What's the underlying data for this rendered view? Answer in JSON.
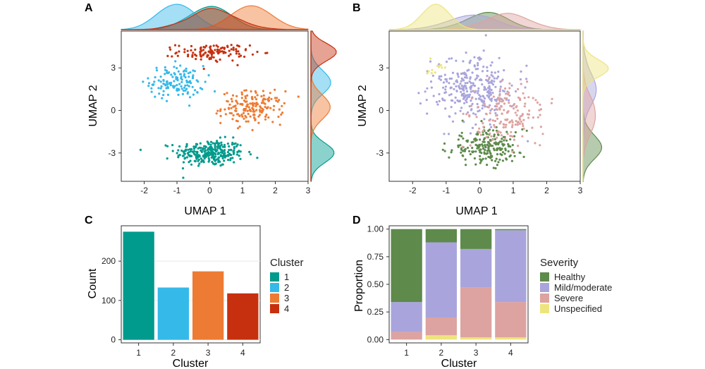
{
  "colors": {
    "cluster1": "#009B8D",
    "cluster2": "#35B9E9",
    "cluster3": "#EE7B33",
    "cluster4": "#C7300E",
    "healthy": "#5E8A4B",
    "mild": "#A9A5DC",
    "severe": "#DDA3A0",
    "unspecified": "#EEE47E"
  },
  "panels": {
    "A": {
      "label": "A"
    },
    "B": {
      "label": "B"
    },
    "C": {
      "label": "C"
    },
    "D": {
      "label": "D"
    }
  },
  "chart_data": [
    {
      "id": "A",
      "type": "scatter",
      "title": "",
      "xlabel": "UMAP 1",
      "ylabel": "UMAP 2",
      "xlim": [
        -2.7,
        3.0
      ],
      "ylim": [
        -5.0,
        5.6
      ],
      "xticks": [
        -2,
        -1,
        0,
        1,
        2,
        3
      ],
      "xtick_labels": [
        "-2",
        "-1",
        "0",
        "1",
        "2",
        "3"
      ],
      "yticks": [
        3,
        0,
        -3
      ],
      "ytick_labels": [
        "3",
        "0",
        "-3"
      ],
      "color_by": "cluster",
      "groups": [
        {
          "name": "1",
          "n": 275,
          "center": [
            0.0,
            -3.0
          ],
          "spread": [
            0.95,
            0.85
          ]
        },
        {
          "name": "2",
          "n": 133,
          "center": [
            -1.0,
            2.0
          ],
          "spread": [
            0.75,
            1.05
          ]
        },
        {
          "name": "3",
          "n": 174,
          "center": [
            1.3,
            0.2
          ],
          "spread": [
            0.85,
            1.05
          ]
        },
        {
          "name": "4",
          "n": 118,
          "center": [
            0.1,
            4.1
          ],
          "spread": [
            1.0,
            0.55
          ]
        }
      ],
      "marginal_densities": true
    },
    {
      "id": "B",
      "type": "scatter",
      "title": "",
      "xlabel": "UMAP 1",
      "ylabel": "UMAP 2",
      "xlim": [
        -2.7,
        3.0
      ],
      "ylim": [
        -5.0,
        5.6
      ],
      "xticks": [
        -2,
        -1,
        0,
        1,
        2,
        3
      ],
      "xtick_labels": [
        "-2",
        "-1",
        "0",
        "1",
        "2",
        "3"
      ],
      "yticks": [
        3,
        0,
        -3
      ],
      "ytick_labels": [
        "3",
        "0",
        "-3"
      ],
      "color_by": "severity",
      "groups": [
        {
          "name": "Healthy",
          "n": 210,
          "center": [
            0.2,
            -2.6
          ],
          "spread": [
            1.0,
            1.1
          ]
        },
        {
          "name": "Mild/moderate",
          "n": 300,
          "center": [
            -0.2,
            1.5
          ],
          "spread": [
            1.1,
            2.0
          ]
        },
        {
          "name": "Severe",
          "n": 160,
          "center": [
            0.9,
            -0.3
          ],
          "spread": [
            1.0,
            1.9
          ]
        },
        {
          "name": "Unspecified",
          "n": 12,
          "center": [
            -1.3,
            3.0
          ],
          "spread": [
            0.35,
            0.5
          ]
        }
      ],
      "marginal_densities": true
    },
    {
      "id": "C",
      "type": "bar",
      "title": "",
      "xlabel": "Cluster",
      "ylabel": "Count",
      "categories": [
        "1",
        "2",
        "3",
        "4"
      ],
      "values": [
        275,
        133,
        174,
        118
      ],
      "ylim": [
        0,
        290
      ],
      "yticks": [
        0,
        100,
        200
      ],
      "ytick_labels": [
        "0",
        "100",
        "200"
      ],
      "legend_title": "Cluster",
      "legend_items": [
        "1",
        "2",
        "3",
        "4"
      ],
      "legend_position": "right"
    },
    {
      "id": "D",
      "type": "bar",
      "stacked": true,
      "title": "",
      "xlabel": "Cluster",
      "ylabel": "Proportion",
      "categories": [
        "1",
        "2",
        "3",
        "4"
      ],
      "series": [
        {
          "name": "Unspecified",
          "values": [
            0.0,
            0.04,
            0.02,
            0.02
          ]
        },
        {
          "name": "Severe",
          "values": [
            0.07,
            0.16,
            0.45,
            0.32
          ]
        },
        {
          "name": "Mild/moderate",
          "values": [
            0.27,
            0.68,
            0.35,
            0.65
          ]
        },
        {
          "name": "Healthy",
          "values": [
            0.66,
            0.12,
            0.18,
            0.01
          ]
        }
      ],
      "ylim": [
        -0.03,
        1.03
      ],
      "yticks": [
        0.0,
        0.25,
        0.5,
        0.75,
        1.0
      ],
      "ytick_labels": [
        "0.00",
        "0.25",
        "0.50",
        "0.75",
        "1.00"
      ],
      "legend_title": "Severity",
      "legend_items": [
        "Healthy",
        "Mild/moderate",
        "Severe",
        "Unspecified"
      ],
      "legend_position": "right"
    }
  ]
}
